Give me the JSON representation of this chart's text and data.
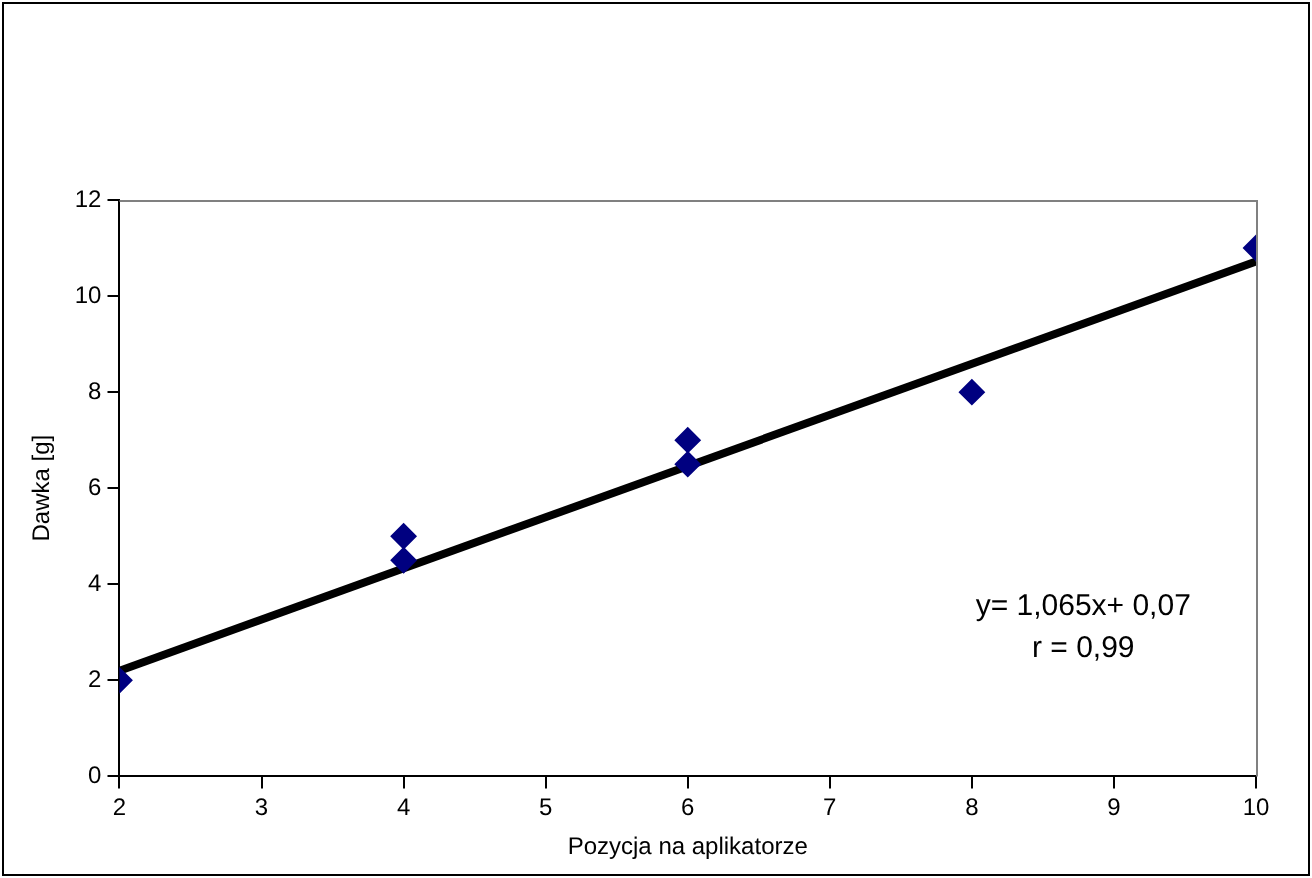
{
  "chart_data": {
    "type": "scatter",
    "xlabel": "Pozycja na aplikatorze",
    "ylabel": "Dawka [g]",
    "series": [
      {
        "color": "#000080",
        "x": [
          2,
          4,
          4,
          6,
          6,
          8,
          10
        ],
        "values": [
          2,
          4.5,
          5,
          6.5,
          7,
          8,
          11
        ],
        "marker": "diamond"
      },
      {
        "type": "line",
        "color": "#000000",
        "x": [
          2,
          10
        ],
        "values": [
          2.2,
          10.72
        ],
        "marker": "none",
        "line_style": "solid"
      }
    ],
    "xlim": [
      2,
      10
    ],
    "xticks": [
      2,
      3,
      4,
      5,
      6,
      7,
      8,
      9,
      10
    ],
    "ylim": [
      0,
      12
    ],
    "yticks": [
      0,
      2,
      4,
      6,
      8,
      10,
      12
    ],
    "grid": false,
    "legend": false,
    "annotations": [
      "y= 1,065x+ 0,07",
      "r = 0,99"
    ]
  }
}
